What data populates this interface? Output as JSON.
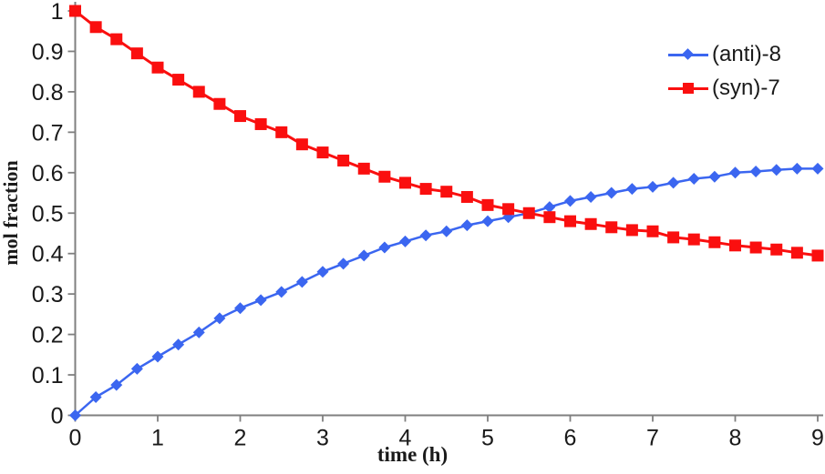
{
  "chart_data": {
    "type": "line",
    "title": "",
    "xlabel": "time (h)",
    "ylabel": "mol fraction",
    "xlim": [
      0,
      9
    ],
    "ylim": [
      0,
      1
    ],
    "x_ticks": [
      0,
      1,
      2,
      3,
      4,
      5,
      6,
      7,
      8,
      9
    ],
    "y_ticks": [
      0,
      0.1,
      0.2,
      0.3,
      0.4,
      0.5,
      0.6,
      0.7,
      0.8,
      0.9,
      1
    ],
    "grid": false,
    "legend_position": "top-right",
    "axis_color": "#7f7f7f",
    "text_color": "#1a1a1a",
    "x": [
      0,
      0.25,
      0.5,
      0.75,
      1,
      1.25,
      1.5,
      1.75,
      2,
      2.25,
      2.5,
      2.75,
      3,
      3.25,
      3.5,
      3.75,
      4,
      4.25,
      4.5,
      4.75,
      5,
      5.25,
      5.5,
      5.75,
      6,
      6.25,
      6.5,
      6.75,
      7,
      7.25,
      7.5,
      7.75,
      8,
      8.25,
      8.5,
      8.75,
      9
    ],
    "series": [
      {
        "name": "(anti)-8",
        "color": "#3b66f0",
        "marker": "diamond",
        "values": [
          0,
          0.045,
          0.075,
          0.115,
          0.145,
          0.175,
          0.205,
          0.24,
          0.265,
          0.285,
          0.305,
          0.33,
          0.355,
          0.375,
          0.395,
          0.415,
          0.43,
          0.445,
          0.455,
          0.47,
          0.48,
          0.49,
          0.5,
          0.515,
          0.53,
          0.54,
          0.55,
          0.56,
          0.565,
          0.575,
          0.585,
          0.59,
          0.6,
          0.603,
          0.607,
          0.61,
          0.61
        ]
      },
      {
        "name": "(syn)-7",
        "color": "#fa0f0f",
        "marker": "square",
        "values": [
          1,
          0.96,
          0.93,
          0.895,
          0.86,
          0.83,
          0.8,
          0.77,
          0.74,
          0.72,
          0.7,
          0.67,
          0.65,
          0.63,
          0.61,
          0.59,
          0.575,
          0.56,
          0.553,
          0.54,
          0.52,
          0.51,
          0.5,
          0.49,
          0.48,
          0.473,
          0.465,
          0.458,
          0.455,
          0.44,
          0.435,
          0.428,
          0.42,
          0.415,
          0.41,
          0.402,
          0.395
        ]
      }
    ]
  }
}
